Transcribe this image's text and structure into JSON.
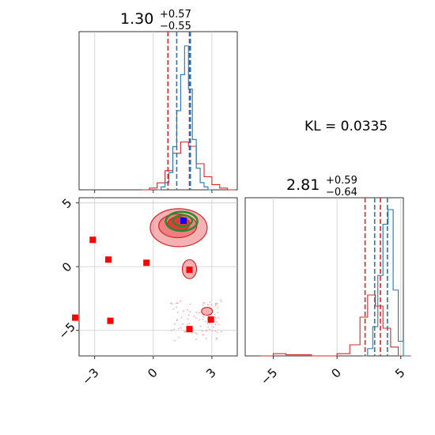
{
  "chart_data": {
    "type": "corner",
    "kl_label": "KL = 0.0335",
    "colors": {
      "posterior_a": "#1f77b4",
      "posterior_b": "#d62728",
      "contour_fill": "#e8555a",
      "contour_green": "#2a8a2a",
      "marker_blue": "#0000ff",
      "marker_red": "#ff0000",
      "grid": "#cccccc"
    },
    "grid": true,
    "panels": [
      {
        "name": "param1-marginal",
        "title_value": "1.30",
        "title_upper": "+0.57",
        "title_lower": "−0.55",
        "xlim": [
          -3.8,
          4.3
        ],
        "hist_blue": {
          "x_bins": [
            0.2,
            0.4,
            0.6,
            0.8,
            1.0,
            1.2,
            1.4,
            1.6,
            1.8,
            2.0,
            2.2,
            2.4,
            2.6,
            2.8
          ],
          "heights": [
            0.0,
            0.02,
            0.05,
            0.12,
            0.3,
            0.55,
            0.8,
            1.0,
            0.7,
            0.35,
            0.15,
            0.05,
            0.02,
            0.0
          ]
        },
        "hist_red": {
          "x_bins": [
            -0.6,
            -0.2,
            0.2,
            0.6,
            1.0,
            1.4,
            1.8,
            2.2,
            2.6,
            3.0,
            3.4,
            3.8
          ],
          "heights": [
            0.0,
            0.02,
            0.08,
            0.22,
            0.42,
            0.55,
            0.5,
            0.3,
            0.15,
            0.06,
            0.02,
            0.0
          ]
        },
        "quantiles_red": [
          0.75,
          1.85
        ],
        "quantiles_blue": [
          1.2,
          1.9
        ]
      },
      {
        "name": "param2-marginal",
        "title_value": "2.81",
        "title_upper": "+0.59",
        "title_lower": "−0.64",
        "xlim": [
          -7.2,
          5.2
        ],
        "xticks": [
          -5,
          0,
          5
        ],
        "xtick_labels": [
          "−5",
          "0",
          "5"
        ],
        "hist_blue": {
          "x_bins": [
            2.0,
            2.4,
            2.8,
            3.2,
            3.6,
            4.0,
            4.4,
            4.8,
            5.2
          ],
          "heights": [
            0.0,
            0.05,
            0.2,
            0.55,
            0.9,
            1.0,
            0.45,
            0.1,
            0.0
          ]
        },
        "hist_red": {
          "x_bins": [
            -6.0,
            -5.0,
            -4.0,
            -2.0,
            0.0,
            1.0,
            1.8,
            2.4,
            3.0,
            3.6,
            4.2,
            4.8
          ],
          "heights": [
            0.0,
            0.02,
            0.01,
            0.0,
            0.02,
            0.1,
            0.35,
            0.55,
            0.45,
            0.25,
            0.08,
            0.0
          ]
        },
        "quantiles_red": [
          2.2,
          3.4
        ],
        "quantiles_blue": [
          2.95,
          3.95
        ]
      },
      {
        "name": "joint-2d",
        "xlim": [
          -3.8,
          4.3
        ],
        "ylim": [
          -7.0,
          5.4
        ],
        "xticks": [
          -3,
          0,
          3
        ],
        "xtick_labels": [
          "−3",
          "0",
          "3"
        ],
        "yticks": [
          -5,
          0,
          5
        ],
        "ytick_labels": [
          "−5",
          "0",
          "5"
        ],
        "blue_marker": [
          1.55,
          3.6
        ],
        "red_markers": [
          [
            -3.1,
            2.1
          ],
          [
            -2.3,
            0.55
          ],
          [
            -0.35,
            0.3
          ],
          [
            1.85,
            -0.25
          ],
          [
            -4.0,
            -4.0
          ],
          [
            -2.2,
            -4.25
          ],
          [
            1.85,
            -4.9
          ],
          [
            2.95,
            -4.15
          ]
        ]
      }
    ]
  }
}
